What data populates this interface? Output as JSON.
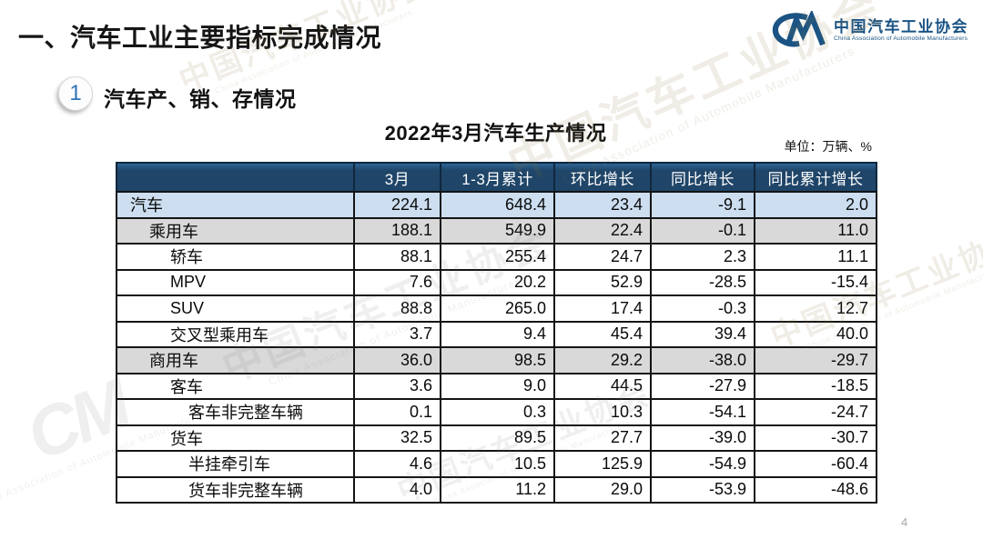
{
  "page": {
    "title": "一、汽车工业主要指标完成情况",
    "page_number": "4"
  },
  "logo": {
    "name": "中国汽车工业协会",
    "subtitle": "China Association of Automobile Manufacturers",
    "color": "#1a5384"
  },
  "section": {
    "number": "1",
    "title": "汽车产、销、存情况"
  },
  "table_block": {
    "title": "2022年3月汽车生产情况",
    "unit_label": "单位：万辆、%"
  },
  "colors": {
    "header_bg": "#1f4568",
    "total_row_bg": "#ccdef0",
    "group_row_bg": "#d9d9d9",
    "accent_blue": "#2e74b5"
  },
  "watermark": {
    "text": "中国汽车工业协会",
    "subtext": "China Association of Automobile Manufacturers",
    "mark": "CM"
  },
  "chart_data": {
    "type": "table",
    "title": "2022年3月汽车生产情况",
    "unit": "万辆、%",
    "columns": [
      "",
      "3月",
      "1-3月累计",
      "环比增长",
      "同比增长",
      "同比累计增长"
    ],
    "rows": [
      {
        "label": "汽车",
        "indent": 0,
        "style": "total",
        "values": [
          "224.1",
          "648.4",
          "23.4",
          "-9.1",
          "2.0"
        ]
      },
      {
        "label": "乘用车",
        "indent": 1,
        "style": "group",
        "values": [
          "188.1",
          "549.9",
          "22.4",
          "-0.1",
          "11.0"
        ]
      },
      {
        "label": "轿车",
        "indent": 2,
        "style": "plain",
        "values": [
          "88.1",
          "255.4",
          "24.7",
          "2.3",
          "11.1"
        ]
      },
      {
        "label": "MPV",
        "indent": 2,
        "style": "plain",
        "values": [
          "7.6",
          "20.2",
          "52.9",
          "-28.5",
          "-15.4"
        ]
      },
      {
        "label": "SUV",
        "indent": 2,
        "style": "plain",
        "values": [
          "88.8",
          "265.0",
          "17.4",
          "-0.3",
          "12.7"
        ]
      },
      {
        "label": "交叉型乘用车",
        "indent": 2,
        "style": "plain",
        "values": [
          "3.7",
          "9.4",
          "45.4",
          "39.4",
          "40.0"
        ]
      },
      {
        "label": "商用车",
        "indent": 1,
        "style": "group",
        "values": [
          "36.0",
          "98.5",
          "29.2",
          "-38.0",
          "-29.7"
        ]
      },
      {
        "label": "客车",
        "indent": 2,
        "style": "plain",
        "values": [
          "3.6",
          "9.0",
          "44.5",
          "-27.9",
          "-18.5"
        ]
      },
      {
        "label": "客车非完整车辆",
        "indent": 3,
        "style": "plain",
        "values": [
          "0.1",
          "0.3",
          "10.3",
          "-54.1",
          "-24.7"
        ]
      },
      {
        "label": "货车",
        "indent": 2,
        "style": "plain",
        "values": [
          "32.5",
          "89.5",
          "27.7",
          "-39.0",
          "-30.7"
        ]
      },
      {
        "label": "半挂牵引车",
        "indent": 3,
        "style": "plain",
        "values": [
          "4.6",
          "10.5",
          "125.9",
          "-54.9",
          "-60.4"
        ]
      },
      {
        "label": "货车非完整车辆",
        "indent": 3,
        "style": "plain",
        "values": [
          "4.0",
          "11.2",
          "29.0",
          "-53.9",
          "-48.6"
        ]
      }
    ]
  }
}
